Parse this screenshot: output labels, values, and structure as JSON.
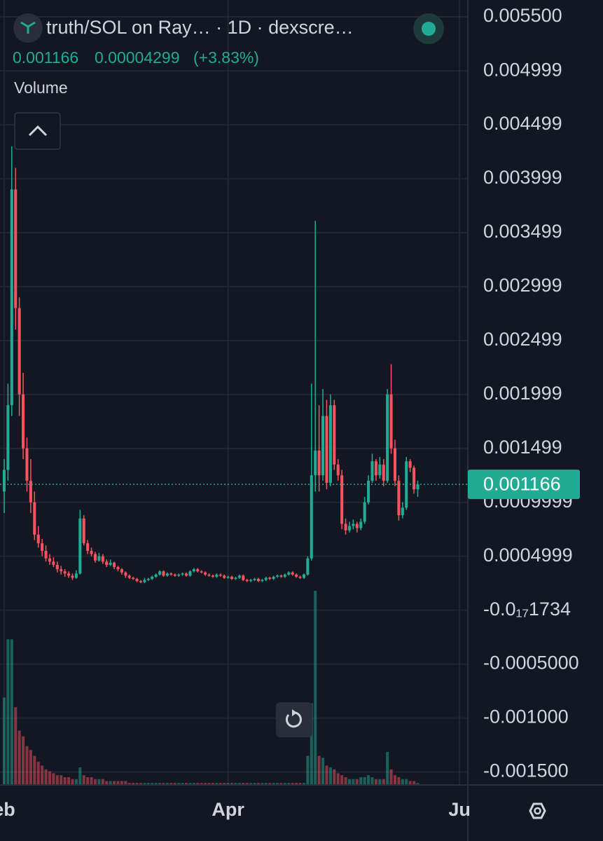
{
  "chart_data": {
    "type": "candlestick",
    "title": "truth/SOL on Ray… · 1D · dexscre…",
    "price": 0.001166,
    "change": 4.299e-05,
    "change_pct": "(+3.83%)",
    "volume_label": "Volume",
    "up_color": "#22ab94",
    "down_color": "#f7525f",
    "ylim": [
      -0.00162,
      0.005656
    ],
    "yticks": [
      {
        "value": 0.0055,
        "label": "0.005500"
      },
      0.004999,
      0.004499,
      0.003999,
      0.003499,
      0.002999,
      0.002499,
      0.001999,
      0.001499,
      0.0009999,
      0.0004999,
      {
        "value": -1.734e-18,
        "label": "-0.0₁₇1734"
      },
      {
        "value": -0.0005,
        "label": "-0.0005000"
      },
      {
        "value": -0.001,
        "label": "-0.001000"
      },
      {
        "value": -0.0015,
        "label": "-0.001500"
      }
    ],
    "xlim": [
      -1.1,
      122.2
    ],
    "xticks": [
      {
        "value": 0,
        "label": "eb"
      },
      {
        "value": 59,
        "label": "Apr"
      },
      {
        "value": 120,
        "label": "Ju"
      }
    ],
    "grid": true,
    "vlim": [
      0,
      100
    ],
    "candles": [
      [
        0.0011,
        0.0014,
        0.0009,
        0.0013
      ],
      [
        0.0013,
        0.0021,
        0.0012,
        0.0019
      ],
      [
        0.0019,
        0.0043,
        0.0018,
        0.0039
      ],
      [
        0.0039,
        0.0041,
        0.0026,
        0.0028
      ],
      [
        0.0028,
        0.0029,
        0.0018,
        0.002
      ],
      [
        0.002,
        0.0022,
        0.0014,
        0.0015
      ],
      [
        0.0015,
        0.0016,
        0.0011,
        0.0012
      ],
      [
        0.0012,
        0.0014,
        0.0009,
        0.001
      ],
      [
        0.001,
        0.0011,
        0.00065,
        0.0007
      ],
      [
        0.0007,
        0.00078,
        0.00058,
        0.00062
      ],
      [
        0.00062,
        0.00066,
        0.0005,
        0.00055
      ],
      [
        0.00055,
        0.0006,
        0.00045,
        0.00048
      ],
      [
        0.00048,
        0.00052,
        0.00042,
        0.00045
      ],
      [
        0.00045,
        0.00049,
        0.0004,
        0.00042
      ],
      [
        0.00042,
        0.00045,
        0.00035,
        0.00038
      ],
      [
        0.00038,
        0.00041,
        0.00033,
        0.00036
      ],
      [
        0.00036,
        0.00038,
        0.00031,
        0.00034
      ],
      [
        0.00034,
        0.00036,
        0.0003,
        0.00032
      ],
      [
        0.00032,
        0.00034,
        0.00028,
        0.0003
      ],
      [
        0.0003,
        0.00037,
        0.00029,
        0.00034
      ],
      [
        0.00034,
        0.00093,
        0.00033,
        0.00085
      ],
      [
        0.00085,
        0.00088,
        0.0006,
        0.00062
      ],
      [
        0.00062,
        0.00065,
        0.00052,
        0.00055
      ],
      [
        0.00055,
        0.00058,
        0.0005,
        0.00052
      ],
      [
        0.00052,
        0.00054,
        0.00044,
        0.00046
      ],
      [
        0.00046,
        0.00053,
        0.00045,
        0.0005
      ],
      [
        0.0005,
        0.00052,
        0.00043,
        0.00045
      ],
      [
        0.00045,
        0.00047,
        0.0004,
        0.00042
      ],
      [
        0.00042,
        0.00047,
        0.00041,
        0.00044
      ],
      [
        0.00044,
        0.00045,
        0.00038,
        0.0004
      ],
      [
        0.0004,
        0.00041,
        0.00036,
        0.00038
      ],
      [
        0.00038,
        0.00039,
        0.00033,
        0.00035
      ],
      [
        0.00035,
        0.00036,
        0.0003,
        0.00032
      ],
      [
        0.00032,
        0.00033,
        0.00029,
        0.0003
      ],
      [
        0.0003,
        0.00031,
        0.00028,
        0.00029
      ],
      [
        0.00029,
        0.0003,
        0.00026,
        0.00027
      ],
      [
        0.00027,
        0.00028,
        0.00025,
        0.00026
      ],
      [
        0.00026,
        0.0003,
        0.00025,
        0.00028
      ],
      [
        0.00028,
        0.0003,
        0.00027,
        0.00029
      ],
      [
        0.00029,
        0.00032,
        0.00028,
        0.00031
      ],
      [
        0.00031,
        0.00034,
        0.0003,
        0.00033
      ],
      [
        0.00033,
        0.00037,
        0.00032,
        0.00036
      ],
      [
        0.00036,
        0.00037,
        0.00031,
        0.00032
      ],
      [
        0.00032,
        0.00035,
        0.00031,
        0.00034
      ],
      [
        0.00034,
        0.00035,
        0.00032,
        0.00033
      ],
      [
        0.00033,
        0.00034,
        0.00031,
        0.00032
      ],
      [
        0.00032,
        0.00034,
        0.00031,
        0.00033
      ],
      [
        0.00033,
        0.00035,
        0.00032,
        0.00034
      ],
      [
        0.00034,
        0.00035,
        0.00031,
        0.00032
      ],
      [
        0.00032,
        0.00037,
        0.00031,
        0.00036
      ],
      [
        0.00036,
        0.00039,
        0.00035,
        0.00038
      ],
      [
        0.00038,
        0.00039,
        0.00035,
        0.00036
      ],
      [
        0.00036,
        0.00037,
        0.00034,
        0.00035
      ],
      [
        0.00035,
        0.00036,
        0.00032,
        0.00033
      ],
      [
        0.00033,
        0.00034,
        0.00031,
        0.00032
      ],
      [
        0.00032,
        0.00033,
        0.0003,
        0.00031
      ],
      [
        0.00031,
        0.00034,
        0.0003,
        0.00033
      ],
      [
        0.00033,
        0.00034,
        0.00031,
        0.00032
      ],
      [
        0.00032,
        0.00033,
        0.00029,
        0.0003
      ],
      [
        0.0003,
        0.00032,
        0.00029,
        0.00031
      ],
      [
        0.00031,
        0.00032,
        0.00028,
        0.00029
      ],
      [
        0.00029,
        0.00031,
        0.00028,
        0.0003
      ],
      [
        0.0003,
        0.00033,
        0.00029,
        0.00032
      ],
      [
        0.00032,
        0.00033,
        0.00027,
        0.00028
      ],
      [
        0.00028,
        0.00029,
        0.00026,
        0.00027
      ],
      [
        0.00027,
        0.00029,
        0.00026,
        0.00028
      ],
      [
        0.00028,
        0.0003,
        0.00027,
        0.00029
      ],
      [
        0.00029,
        0.0003,
        0.00026,
        0.00027
      ],
      [
        0.00027,
        0.00029,
        0.00026,
        0.00028
      ],
      [
        0.00028,
        0.00031,
        0.00027,
        0.0003
      ],
      [
        0.0003,
        0.00031,
        0.00028,
        0.00029
      ],
      [
        0.00029,
        0.00032,
        0.00028,
        0.00031
      ],
      [
        0.00031,
        0.00033,
        0.0003,
        0.00032
      ],
      [
        0.00032,
        0.00033,
        0.0003,
        0.00031
      ],
      [
        0.00031,
        0.00034,
        0.0003,
        0.00033
      ],
      [
        0.00033,
        0.00036,
        0.00032,
        0.00035
      ],
      [
        0.00035,
        0.00036,
        0.00032,
        0.00033
      ],
      [
        0.00033,
        0.00034,
        0.0003,
        0.00031
      ],
      [
        0.00031,
        0.00032,
        0.00029,
        0.0003
      ],
      [
        0.0003,
        0.00034,
        0.00029,
        0.00033
      ],
      [
        0.00033,
        0.0005,
        0.00032,
        0.00048
      ],
      [
        0.00048,
        0.0021,
        0.00046,
        0.00125
      ],
      [
        0.00125,
        0.00361,
        0.0011,
        0.00148
      ],
      [
        0.00148,
        0.0019,
        0.0011,
        0.00125
      ],
      [
        0.00125,
        0.00205,
        0.0012,
        0.0018
      ],
      [
        0.0018,
        0.00195,
        0.00112,
        0.00118
      ],
      [
        0.00118,
        0.002,
        0.00115,
        0.0019
      ],
      [
        0.0019,
        0.00195,
        0.0013,
        0.00135
      ],
      [
        0.00135,
        0.0014,
        0.0012,
        0.00125
      ],
      [
        0.00125,
        0.0013,
        0.00075,
        0.0008
      ],
      [
        0.0008,
        0.00085,
        0.0007,
        0.00074
      ],
      [
        0.00074,
        0.00082,
        0.00072,
        0.00078
      ],
      [
        0.00078,
        0.00084,
        0.00075,
        0.0008
      ],
      [
        0.0008,
        0.00082,
        0.00072,
        0.00076
      ],
      [
        0.00076,
        0.00085,
        0.00074,
        0.00082
      ],
      [
        0.00082,
        0.00105,
        0.0008,
        0.001
      ],
      [
        0.001,
        0.00125,
        0.00098,
        0.0012
      ],
      [
        0.0012,
        0.00145,
        0.00118,
        0.00138
      ],
      [
        0.00138,
        0.0014,
        0.0012,
        0.00125
      ],
      [
        0.00125,
        0.00142,
        0.00122,
        0.00135
      ],
      [
        0.00135,
        0.0014,
        0.00115,
        0.0012
      ],
      [
        0.0012,
        0.00205,
        0.00118,
        0.002
      ],
      [
        0.002,
        0.00228,
        0.00145,
        0.0015
      ],
      [
        0.0015,
        0.00158,
        0.00115,
        0.0012
      ],
      [
        0.0012,
        0.00125,
        0.00083,
        0.00088
      ],
      [
        0.00088,
        0.001,
        0.00085,
        0.00095
      ],
      [
        0.00095,
        0.00142,
        0.00093,
        0.00138
      ],
      [
        0.00138,
        0.0014,
        0.00128,
        0.00132
      ],
      [
        0.00132,
        0.00134,
        0.00108,
        0.00112
      ],
      [
        0.00112,
        0.0012,
        0.00105,
        0.001166
      ]
    ],
    "volume": [
      45,
      75,
      75,
      40,
      28,
      25,
      20,
      18,
      15,
      12,
      10,
      8,
      7,
      6,
      5,
      5,
      4,
      4,
      3,
      3,
      9,
      5,
      4,
      4,
      3,
      3,
      3,
      2,
      2,
      2,
      2,
      2,
      2,
      1,
      1,
      1,
      1,
      1,
      1,
      1,
      1,
      1,
      1,
      1,
      1,
      1,
      1,
      1,
      1,
      1,
      1,
      1,
      1,
      1,
      1,
      1,
      1,
      1,
      1,
      1,
      1,
      1,
      1,
      1,
      1,
      1,
      1,
      1,
      1,
      1,
      1,
      1,
      1,
      1,
      1,
      1,
      1,
      1,
      1,
      1,
      15,
      42,
      100,
      15,
      14,
      10,
      9,
      8,
      6,
      5,
      4,
      3,
      3,
      3,
      4,
      4,
      5,
      4,
      3,
      3,
      3,
      17,
      8,
      5,
      4,
      3,
      3,
      2,
      2,
      1
    ]
  }
}
